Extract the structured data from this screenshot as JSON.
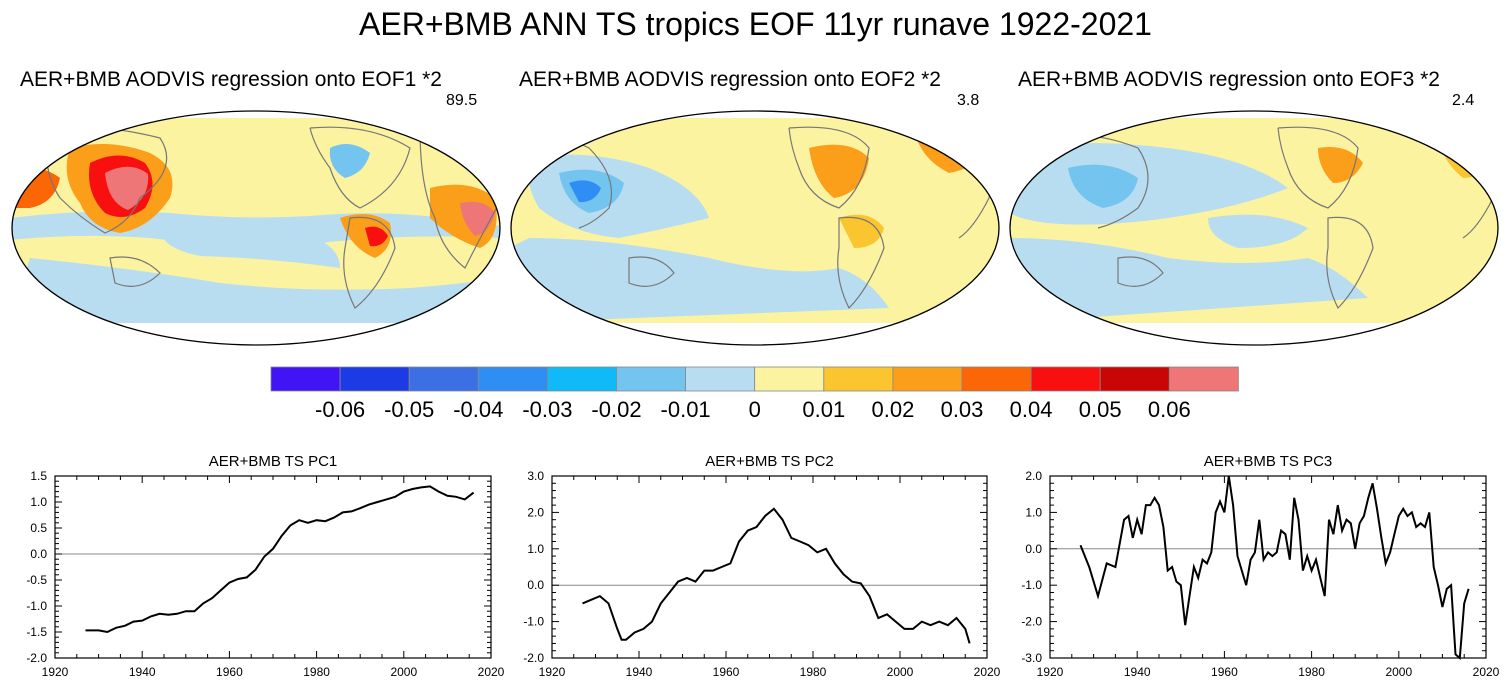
{
  "figure": {
    "title": "AER+BMB ANN TS tropics EOF 11yr runave 1922-2021"
  },
  "maps": [
    {
      "title": "AER+BMB AODVIS regression onto EOF1 *2",
      "value": "89.5"
    },
    {
      "title": "AER+BMB AODVIS regression onto EOF2 *2",
      "value": "3.8"
    },
    {
      "title": "AER+BMB AODVIS regression onto EOF3 *2",
      "value": "2.4"
    }
  ],
  "colorbar": {
    "labels": [
      "-0.06",
      "-0.05",
      "-0.04",
      "-0.03",
      "-0.02",
      "-0.01",
      "0",
      "0.01",
      "0.02",
      "0.03",
      "0.04",
      "0.05",
      "0.06"
    ],
    "colors": [
      "#4114f5",
      "#1c3be4",
      "#3d6fe4",
      "#2f8ef3",
      "#10baf7",
      "#73c4ee",
      "#b9ddf0",
      "#fbf3a0",
      "#fbc52f",
      "#fb9e1a",
      "#fb6606",
      "#f80f0f",
      "#c80606",
      "#ef7676"
    ]
  },
  "chart_data": [
    {
      "type": "line",
      "title": "AER+BMB TS PC1",
      "xlim": [
        1920,
        2020
      ],
      "ylim": [
        -2.0,
        1.5
      ],
      "xticks": [
        1920,
        1940,
        1960,
        1980,
        2000,
        2020
      ],
      "yticks": [
        -2.0,
        -1.5,
        -1.0,
        -0.5,
        0.0,
        0.5,
        1.0,
        1.5
      ],
      "ytick_labels": [
        "-2.0",
        "-1.5",
        "-1.0",
        "-0.5",
        "0.0",
        "0.5",
        "1.0",
        "1.5"
      ],
      "zero_line": true,
      "x": [
        1927,
        1930,
        1932,
        1934,
        1936,
        1938,
        1940,
        1942,
        1944,
        1946,
        1948,
        1950,
        1952,
        1954,
        1956,
        1958,
        1960,
        1962,
        1964,
        1966,
        1968,
        1970,
        1972,
        1974,
        1976,
        1978,
        1980,
        1982,
        1984,
        1986,
        1988,
        1990,
        1992,
        1994,
        1996,
        1998,
        2000,
        2002,
        2004,
        2006,
        2008,
        2010,
        2012,
        2014,
        2016
      ],
      "y": [
        -1.47,
        -1.47,
        -1.5,
        -1.42,
        -1.38,
        -1.3,
        -1.28,
        -1.2,
        -1.15,
        -1.17,
        -1.15,
        -1.1,
        -1.1,
        -0.95,
        -0.85,
        -0.7,
        -0.55,
        -0.48,
        -0.45,
        -0.3,
        -0.05,
        0.1,
        0.35,
        0.55,
        0.65,
        0.6,
        0.65,
        0.63,
        0.7,
        0.8,
        0.82,
        0.88,
        0.95,
        1.0,
        1.05,
        1.1,
        1.2,
        1.25,
        1.28,
        1.3,
        1.2,
        1.12,
        1.1,
        1.05,
        1.18
      ]
    },
    {
      "type": "line",
      "title": "AER+BMB TS PC2",
      "xlim": [
        1920,
        2020
      ],
      "ylim": [
        -2.0,
        3.0
      ],
      "xticks": [
        1920,
        1940,
        1960,
        1980,
        2000,
        2020
      ],
      "yticks": [
        -2.0,
        -1.0,
        0.0,
        1.0,
        2.0,
        3.0
      ],
      "ytick_labels": [
        "-2.0",
        "-1.0",
        "0.0",
        "1.0",
        "2.0",
        "3.0"
      ],
      "zero_line": true,
      "x": [
        1927,
        1929,
        1931,
        1933,
        1935,
        1936,
        1937,
        1939,
        1941,
        1943,
        1945,
        1947,
        1949,
        1951,
        1953,
        1955,
        1957,
        1959,
        1961,
        1963,
        1965,
        1967,
        1969,
        1971,
        1973,
        1975,
        1977,
        1979,
        1981,
        1983,
        1985,
        1987,
        1989,
        1991,
        1993,
        1995,
        1997,
        1999,
        2001,
        2003,
        2005,
        2007,
        2009,
        2011,
        2013,
        2015,
        2016
      ],
      "y": [
        -0.5,
        -0.4,
        -0.3,
        -0.5,
        -1.2,
        -1.5,
        -1.5,
        -1.3,
        -1.2,
        -1.0,
        -0.5,
        -0.2,
        0.1,
        0.2,
        0.1,
        0.4,
        0.4,
        0.5,
        0.6,
        1.2,
        1.5,
        1.6,
        1.9,
        2.1,
        1.8,
        1.3,
        1.2,
        1.1,
        0.9,
        1.0,
        0.6,
        0.3,
        0.1,
        0.05,
        -0.3,
        -0.9,
        -0.8,
        -1.0,
        -1.2,
        -1.2,
        -1.0,
        -1.1,
        -1.0,
        -1.1,
        -0.9,
        -1.2,
        -1.6
      ]
    },
    {
      "type": "line",
      "title": "AER+BMB TS PC3",
      "xlim": [
        1920,
        2020
      ],
      "ylim": [
        -3.0,
        2.0
      ],
      "xticks": [
        1920,
        1940,
        1960,
        1980,
        2000,
        2020
      ],
      "yticks": [
        -3.0,
        -2.0,
        -1.0,
        0.0,
        1.0,
        2.0
      ],
      "ytick_labels": [
        "-3.0",
        "-2.0",
        "-1.0",
        "0.0",
        "1.0",
        "2.0"
      ],
      "zero_line": true,
      "x": [
        1927,
        1929,
        1931,
        1933,
        1935,
        1937,
        1938,
        1939,
        1940,
        1941,
        1942,
        1943,
        1944,
        1945,
        1946,
        1947,
        1948,
        1949,
        1950,
        1951,
        1952,
        1953,
        1954,
        1955,
        1956,
        1957,
        1958,
        1959,
        1960,
        1961,
        1962,
        1963,
        1964,
        1965,
        1966,
        1967,
        1968,
        1969,
        1970,
        1971,
        1972,
        1973,
        1974,
        1975,
        1976,
        1977,
        1978,
        1979,
        1980,
        1981,
        1982,
        1983,
        1984,
        1985,
        1986,
        1987,
        1988,
        1989,
        1990,
        1991,
        1992,
        1993,
        1994,
        1995,
        1996,
        1997,
        1998,
        1999,
        2000,
        2001,
        2002,
        2003,
        2004,
        2005,
        2006,
        2007,
        2008,
        2009,
        2010,
        2011,
        2012,
        2013,
        2014,
        2015,
        2016
      ],
      "y": [
        0.1,
        -0.5,
        -1.3,
        -0.4,
        -0.5,
        0.8,
        0.9,
        0.3,
        0.8,
        0.4,
        1.2,
        1.2,
        1.4,
        1.2,
        0.6,
        -0.6,
        -0.5,
        -0.9,
        -1.0,
        -2.1,
        -1.3,
        -0.5,
        -0.8,
        -0.3,
        -0.4,
        -0.1,
        1.0,
        1.3,
        1.0,
        2.0,
        1.2,
        -0.2,
        -0.6,
        -1.0,
        -0.3,
        -0.1,
        0.8,
        -0.3,
        -0.1,
        -0.2,
        -0.1,
        0.5,
        0.4,
        -0.3,
        1.4,
        0.8,
        -0.6,
        -0.2,
        -0.6,
        -0.3,
        -0.8,
        -1.3,
        0.8,
        0.4,
        1.2,
        0.5,
        0.8,
        0.7,
        0.0,
        0.7,
        0.9,
        1.4,
        1.8,
        1.1,
        0.3,
        -0.4,
        -0.1,
        0.4,
        0.9,
        1.1,
        0.9,
        1.0,
        0.6,
        0.7,
        0.6,
        1.0,
        -0.5,
        -1.0,
        -1.6,
        -1.1,
        -1.0,
        -2.9,
        -3.0,
        -1.5,
        -1.1
      ]
    }
  ]
}
